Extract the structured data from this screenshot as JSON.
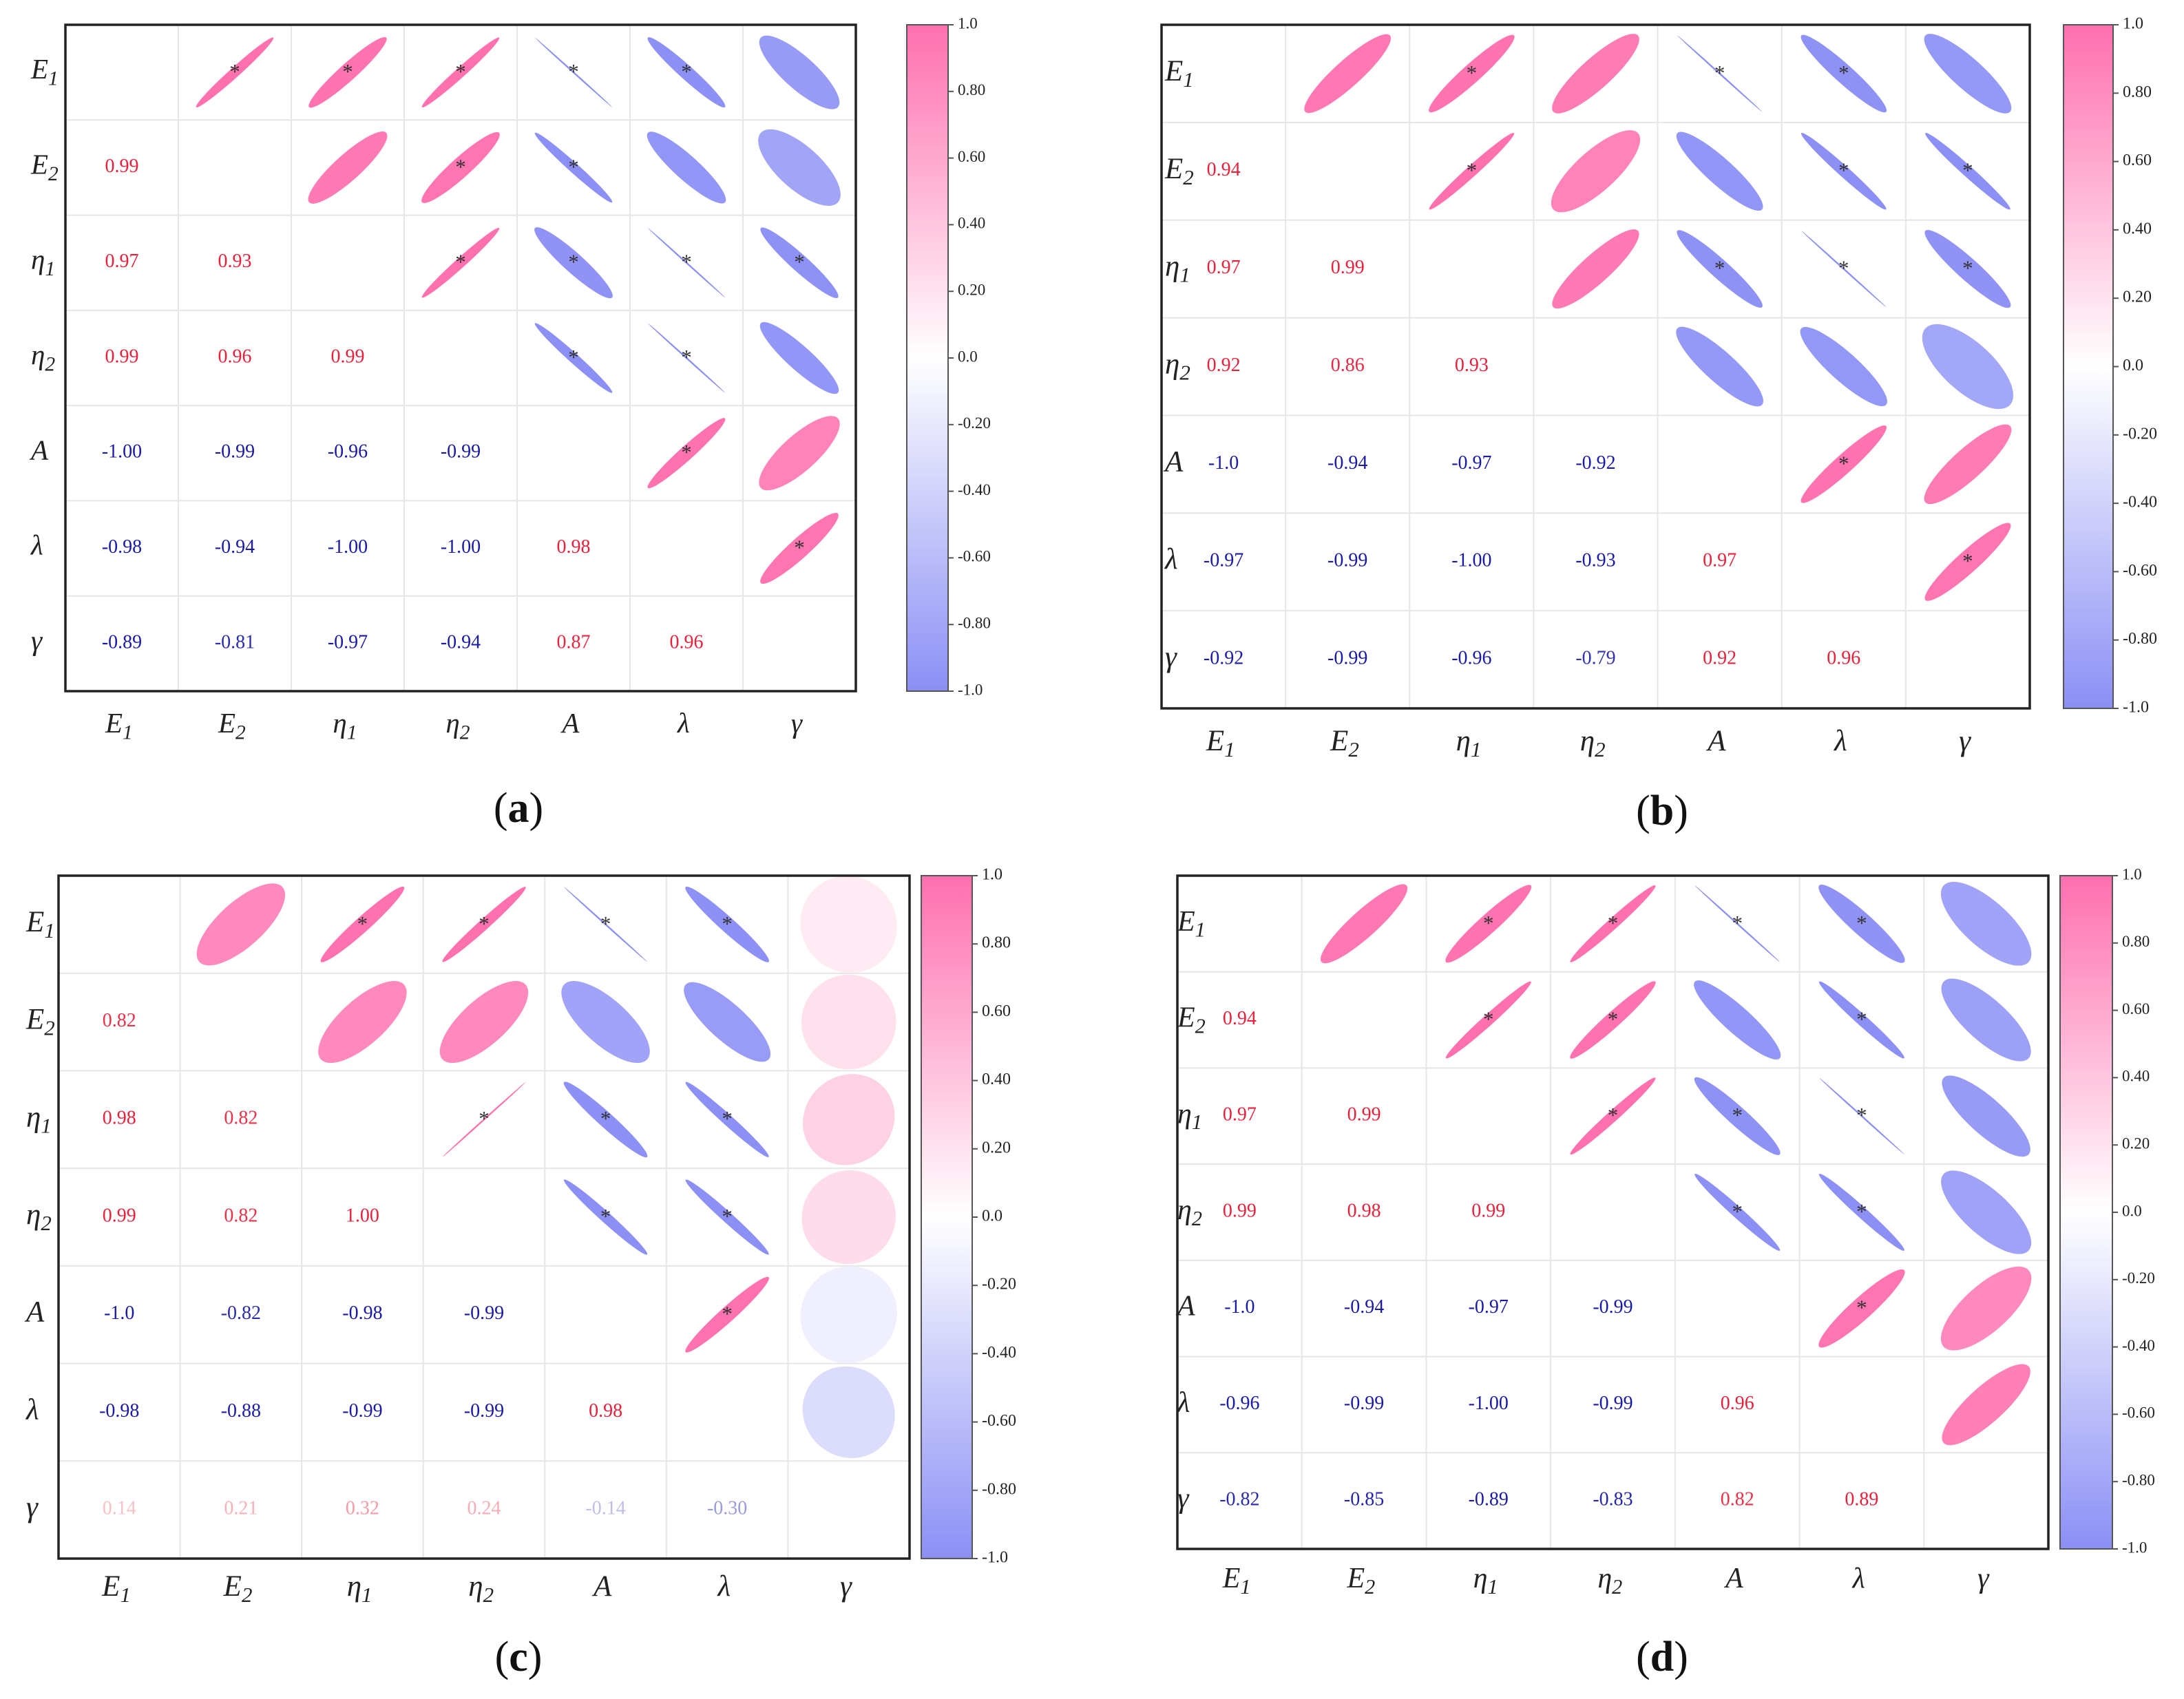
{
  "figure": {
    "colorbar_ticks": [
      "1.0",
      "0.80",
      "0.60",
      "0.40",
      "0.20",
      "0.0",
      "-0.20",
      "-0.40",
      "-0.60",
      "-0.80",
      "-1.0"
    ],
    "colors": {
      "positive_text": "#e8213a",
      "negative_text": "#1a1aa8",
      "positive_fill": "#ff6fae",
      "negative_fill": "#8b8ff5",
      "neutral": "#ffffff",
      "grid": "#e6e6e6",
      "frame": "#222222",
      "star": "#333333"
    }
  },
  "chart_data": [
    {
      "type": "heatmap",
      "subtype": "correlation-ellipse",
      "panel": "a",
      "title": "",
      "xlabel": "",
      "ylabel": "",
      "variables": [
        "E1",
        "E2",
        "η1",
        "η2",
        "A",
        "λ",
        "γ"
      ],
      "value_labels": [
        [
          null,
          null,
          null,
          null,
          null,
          null,
          null
        ],
        [
          "0.99",
          null,
          null,
          null,
          null,
          null,
          null
        ],
        [
          "0.97",
          "0.93",
          null,
          null,
          null,
          null,
          null
        ],
        [
          "0.99",
          "0.96",
          "0.99",
          null,
          null,
          null,
          null
        ],
        [
          "-1.00",
          "-0.99",
          "-0.96",
          "-0.99",
          null,
          null,
          null
        ],
        [
          "-0.98",
          "-0.94",
          "-1.00",
          "-1.00",
          "0.98",
          null,
          null
        ],
        [
          "-0.89",
          "-0.81",
          "-0.97",
          "-0.94",
          "0.87",
          "0.96",
          null
        ]
      ],
      "significant_upper": [
        [
          false,
          true,
          true,
          true,
          true,
          true,
          false
        ],
        [
          false,
          false,
          false,
          true,
          true,
          false,
          false
        ],
        [
          false,
          false,
          false,
          true,
          true,
          true,
          true
        ],
        [
          false,
          false,
          false,
          false,
          true,
          true,
          false
        ],
        [
          false,
          false,
          false,
          false,
          false,
          true,
          false
        ],
        [
          false,
          false,
          false,
          false,
          false,
          false,
          true
        ],
        [
          false,
          false,
          false,
          false,
          false,
          false,
          false
        ]
      ],
      "color_scale": [
        -1.0,
        1.0
      ]
    },
    {
      "type": "heatmap",
      "subtype": "correlation-ellipse",
      "panel": "b",
      "title": "",
      "xlabel": "",
      "ylabel": "",
      "variables": [
        "E1",
        "E2",
        "η1",
        "η2",
        "A",
        "λ",
        "γ"
      ],
      "value_labels": [
        [
          null,
          null,
          null,
          null,
          null,
          null,
          null
        ],
        [
          "0.94",
          null,
          null,
          null,
          null,
          null,
          null
        ],
        [
          "0.97",
          "0.99",
          null,
          null,
          null,
          null,
          null
        ],
        [
          "0.92",
          "0.86",
          "0.93",
          null,
          null,
          null,
          null
        ],
        [
          "-1.0",
          "-0.94",
          "-0.97",
          "-0.92",
          null,
          null,
          null
        ],
        [
          "-0.97",
          "-0.99",
          "-1.00",
          "-0.93",
          "0.97",
          null,
          null
        ],
        [
          "-0.92",
          "-0.99",
          "-0.96",
          "-0.79",
          "0.92",
          "0.96",
          null
        ]
      ],
      "significant_upper": [
        [
          false,
          false,
          true,
          false,
          true,
          true,
          false
        ],
        [
          false,
          false,
          true,
          false,
          false,
          true,
          true
        ],
        [
          false,
          false,
          false,
          false,
          true,
          true,
          true
        ],
        [
          false,
          false,
          false,
          false,
          false,
          false,
          false
        ],
        [
          false,
          false,
          false,
          false,
          false,
          true,
          false
        ],
        [
          false,
          false,
          false,
          false,
          false,
          false,
          true
        ],
        [
          false,
          false,
          false,
          false,
          false,
          false,
          false
        ]
      ],
      "color_scale": [
        -1.0,
        1.0
      ]
    },
    {
      "type": "heatmap",
      "subtype": "correlation-ellipse",
      "panel": "c",
      "title": "",
      "xlabel": "",
      "ylabel": "",
      "variables": [
        "E1",
        "E2",
        "η1",
        "η2",
        "A",
        "λ",
        "γ"
      ],
      "value_labels": [
        [
          null,
          null,
          null,
          null,
          null,
          null,
          null
        ],
        [
          "0.82",
          null,
          null,
          null,
          null,
          null,
          null
        ],
        [
          "0.98",
          "0.82",
          null,
          null,
          null,
          null,
          null
        ],
        [
          "0.99",
          "0.82",
          "1.00",
          null,
          null,
          null,
          null
        ],
        [
          "-1.0",
          "-0.82",
          "-0.98",
          "-0.99",
          null,
          null,
          null
        ],
        [
          "-0.98",
          "-0.88",
          "-0.99",
          "-0.99",
          "0.98",
          null,
          null
        ],
        [
          "0.14",
          "0.21",
          "0.32",
          "0.24",
          "-0.14",
          "-0.30",
          null
        ]
      ],
      "significant_upper": [
        [
          false,
          false,
          true,
          true,
          true,
          true,
          false
        ],
        [
          false,
          false,
          false,
          false,
          false,
          false,
          false
        ],
        [
          false,
          false,
          false,
          true,
          true,
          true,
          false
        ],
        [
          false,
          false,
          false,
          false,
          true,
          true,
          false
        ],
        [
          false,
          false,
          false,
          false,
          false,
          true,
          false
        ],
        [
          false,
          false,
          false,
          false,
          false,
          false,
          false
        ],
        [
          false,
          false,
          false,
          false,
          false,
          false,
          false
        ]
      ],
      "color_scale": [
        -1.0,
        1.0
      ]
    },
    {
      "type": "heatmap",
      "subtype": "correlation-ellipse",
      "panel": "d",
      "title": "",
      "xlabel": "",
      "ylabel": "",
      "variables": [
        "E1",
        "E2",
        "η1",
        "η2",
        "A",
        "λ",
        "γ"
      ],
      "value_labels": [
        [
          null,
          null,
          null,
          null,
          null,
          null,
          null
        ],
        [
          "0.94",
          null,
          null,
          null,
          null,
          null,
          null
        ],
        [
          "0.97",
          "0.99",
          null,
          null,
          null,
          null,
          null
        ],
        [
          "0.99",
          "0.98",
          "0.99",
          null,
          null,
          null,
          null
        ],
        [
          "-1.0",
          "-0.94",
          "-0.97",
          "-0.99",
          null,
          null,
          null
        ],
        [
          "-0.96",
          "-0.99",
          "-1.00",
          "-0.99",
          "0.96",
          null,
          null
        ],
        [
          "-0.82",
          "-0.85",
          "-0.89",
          "-0.83",
          "0.82",
          "0.89",
          null
        ]
      ],
      "significant_upper": [
        [
          false,
          false,
          true,
          true,
          true,
          true,
          false
        ],
        [
          false,
          false,
          true,
          true,
          false,
          true,
          false
        ],
        [
          false,
          false,
          false,
          true,
          true,
          true,
          false
        ],
        [
          false,
          false,
          false,
          false,
          true,
          true,
          false
        ],
        [
          false,
          false,
          false,
          false,
          false,
          true,
          false
        ],
        [
          false,
          false,
          false,
          false,
          false,
          false,
          false
        ],
        [
          false,
          false,
          false,
          false,
          false,
          false,
          false
        ]
      ],
      "color_scale": [
        -1.0,
        1.0
      ]
    }
  ]
}
